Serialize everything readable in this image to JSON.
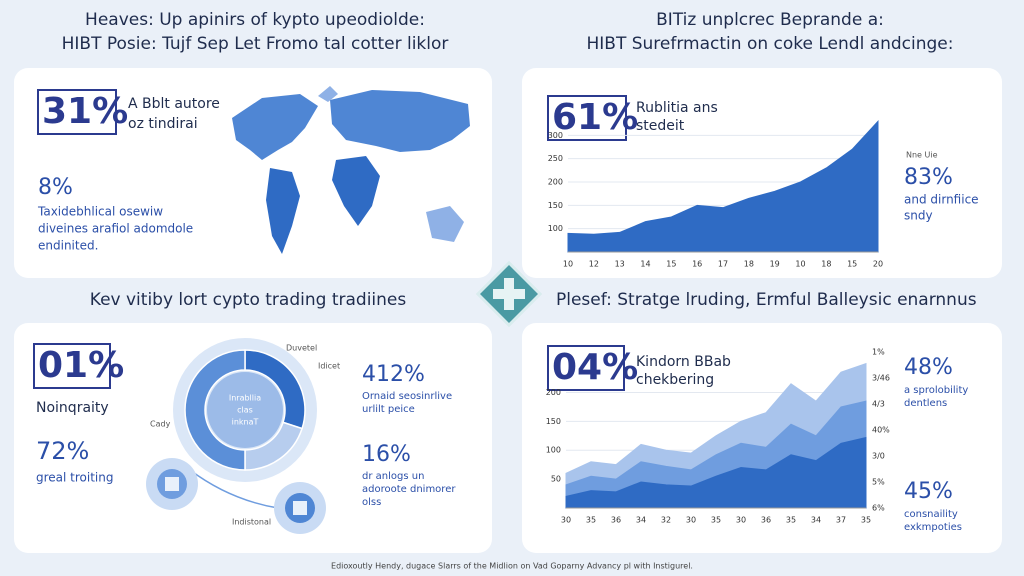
{
  "top_left": {
    "heading": [
      "Heaves: Up apinirs of kypto upeodiolde:",
      "HIBT Posie: Tujf Sep Let Fromo tal cotter liklor"
    ],
    "big_stat": "31%",
    "caption": [
      "A Bblt autore",
      "oz tindirai"
    ],
    "stat": "8%",
    "text": [
      "Taxidebhlical osewiw",
      "diveines arafiol adomdole",
      "endinited."
    ]
  },
  "top_right": {
    "heading": [
      "BITiz unplcrec Beprande a:",
      "HIBT Surefrmactin on coke Lendl andcinge:"
    ],
    "big_stat": "61%",
    "caption": [
      "Rublitia ans",
      "stedeit"
    ],
    "side_label": "Nne Uie",
    "stat": "83%",
    "text": [
      "and dirnfiice",
      "sndy"
    ],
    "chart": {
      "type": "area",
      "categories": [
        "10",
        "12",
        "13",
        "14",
        "15",
        "16",
        "17",
        "18",
        "19",
        "10",
        "18",
        "15",
        "20"
      ],
      "values": [
        90,
        88,
        92,
        115,
        125,
        150,
        145,
        165,
        180,
        200,
        230,
        270,
        330
      ],
      "color": "#2f6bc4",
      "ylim": [
        50,
        350
      ],
      "yticks": [
        100,
        150,
        200,
        250,
        300
      ]
    }
  },
  "bottom_left": {
    "heading": "Kev vitiby lort cypto trading tradiines",
    "big_stat": "01%",
    "caption": "Noinqraity",
    "stat": "72%",
    "stat_caption": "greal troiting",
    "center": [
      "Inrabllia",
      "clas",
      "inknaT"
    ],
    "labels": [
      "Duvetel",
      "Idicet",
      "Cady",
      "Indistonal"
    ],
    "right_stats": [
      {
        "value": "412%",
        "text": [
          "Ornaid seosinrlive",
          "urlilt peice"
        ]
      },
      {
        "value": "16%",
        "text": [
          "dr anlogs un",
          "adoroote dnimorer",
          "olss"
        ]
      }
    ],
    "donut": {
      "type": "pie",
      "values": [
        30,
        20,
        50
      ],
      "colors": [
        "#2f6bc4",
        "#b7cdee",
        "#5b8fd8"
      ]
    }
  },
  "bottom_right": {
    "heading": "Plesef: Stratge lruding, Ermful Balleysic enarnnus",
    "big_stat": "04%",
    "caption": [
      "Kindorn BBab",
      "chekbering"
    ],
    "right_stats": [
      {
        "value": "48%",
        "text": [
          "a sprolobility",
          "dentlens"
        ]
      },
      {
        "value": "45%",
        "text": [
          "consnaility",
          "exkmpoties"
        ]
      }
    ],
    "chart": {
      "type": "area",
      "categories": [
        "30",
        "35",
        "36",
        "34",
        "32",
        "30",
        "35",
        "30",
        "36",
        "35",
        "34",
        "37",
        "35"
      ],
      "series": [
        {
          "color": "#a9c4ec",
          "values": [
            60,
            80,
            75,
            110,
            100,
            95,
            125,
            150,
            165,
            215,
            185,
            235,
            250
          ]
        },
        {
          "color": "#6f9ddf",
          "values": [
            40,
            55,
            50,
            80,
            72,
            66,
            92,
            112,
            105,
            145,
            125,
            175,
            185
          ]
        },
        {
          "color": "#2f6bc4",
          "values": [
            20,
            30,
            28,
            45,
            40,
            38,
            55,
            70,
            66,
            92,
            82,
            112,
            122
          ]
        }
      ],
      "ylim": [
        0,
        270
      ],
      "yticks": [
        50,
        100,
        150,
        200
      ],
      "right_labels": [
        "1%",
        "3/46",
        "4/3",
        "40%",
        "3/0",
        "5%",
        "6%"
      ]
    }
  },
  "footer": "Edioxoutly Hendy, dugace Slarrs of the Midlion on Vad Goparny Advancy pl with Instigurel."
}
